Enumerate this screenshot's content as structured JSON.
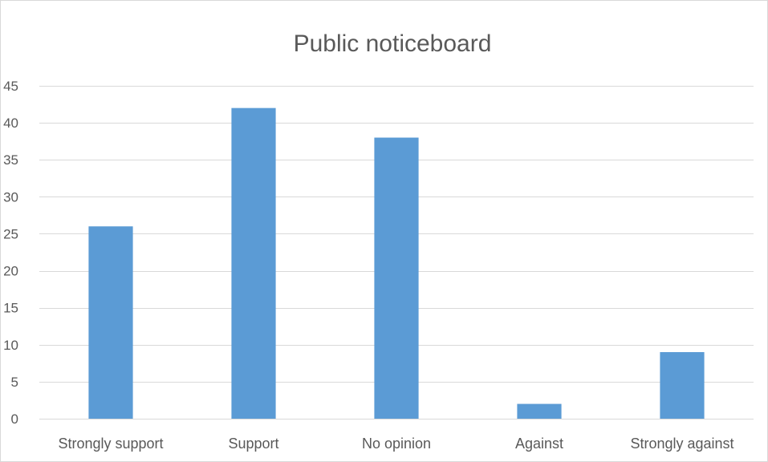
{
  "chart_data": {
    "type": "bar",
    "title": "Public noticeboard",
    "categories": [
      "Strongly support",
      "Support",
      "No opinion",
      "Against",
      "Strongly against"
    ],
    "series": [
      {
        "values": [
          26,
          42,
          38,
          2,
          9
        ],
        "color": "#5b9bd5"
      }
    ],
    "ylim": [
      0,
      45
    ],
    "yticks": [
      0,
      5,
      10,
      15,
      20,
      25,
      30,
      35,
      40,
      45
    ],
    "grid": true,
    "gridColor": "#d9d9d9",
    "legend": "none"
  }
}
